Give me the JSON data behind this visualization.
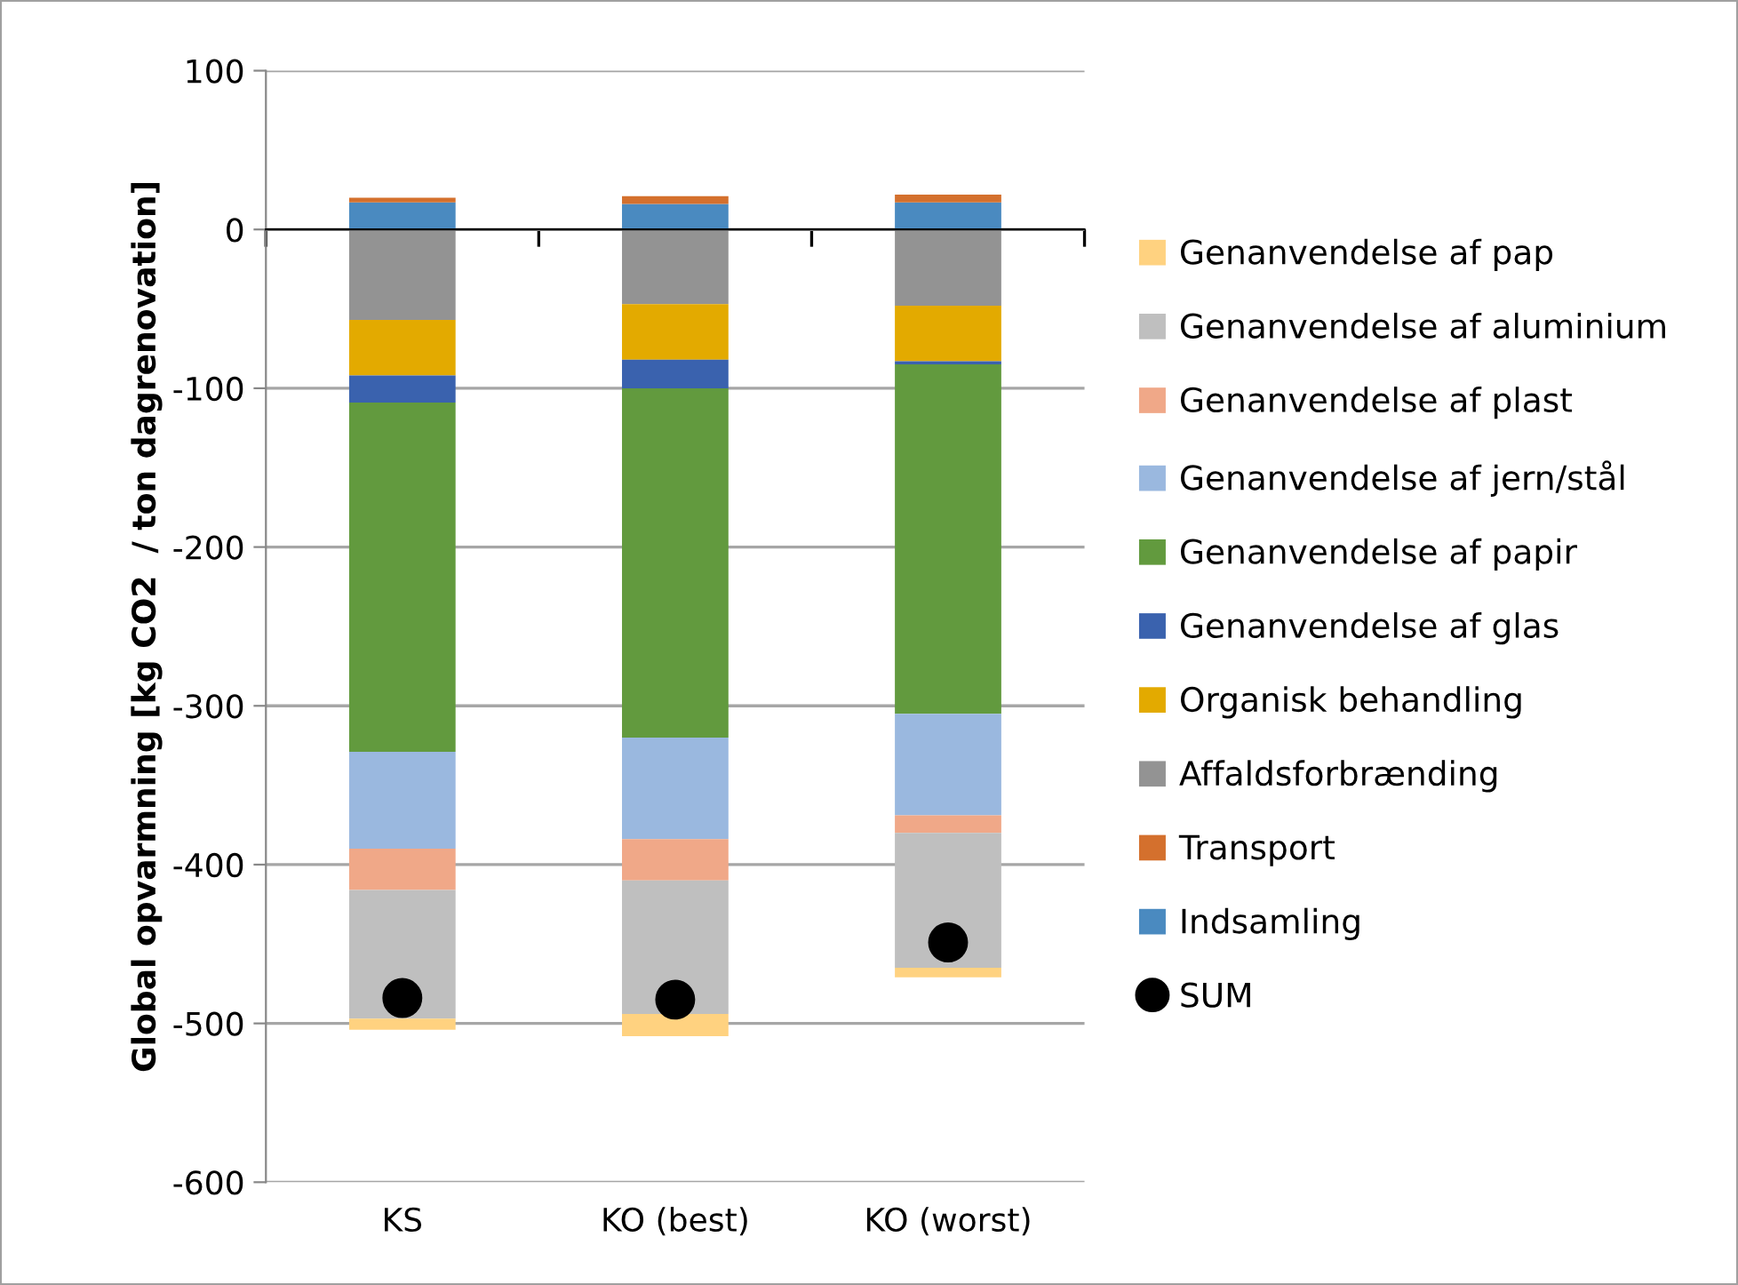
{
  "chart_data": {
    "type": "bar",
    "stacked": true,
    "ylabel": "Global opvarmning [kg CO2  / ton dagrenovation]",
    "categories": [
      "KS",
      "KO (best)",
      "KO (worst)"
    ],
    "series": [
      {
        "name": "Indsamling",
        "color": "#4a8ac0",
        "values": [
          17,
          16,
          17
        ]
      },
      {
        "name": "Transport",
        "color": "#d4702d",
        "values": [
          3,
          5,
          5
        ]
      },
      {
        "name": "Affaldsforbrænding",
        "color": "#939393",
        "values": [
          -57,
          -47,
          -48
        ]
      },
      {
        "name": "Organisk behandling",
        "color": "#e3aa00",
        "values": [
          -35,
          -35,
          -35
        ]
      },
      {
        "name": "Genanvendelse af glas",
        "color": "#3a62ae",
        "values": [
          -17,
          -18,
          -2
        ]
      },
      {
        "name": "Genanvendelse af papir",
        "color": "#629a3e",
        "values": [
          -220,
          -220,
          -220
        ]
      },
      {
        "name": "Genanvendelse af jern/stål",
        "color": "#9ab8df",
        "values": [
          -61,
          -64,
          -64
        ]
      },
      {
        "name": "Genanvendelse af plast",
        "color": "#f0a888",
        "values": [
          -26,
          -26,
          -11
        ]
      },
      {
        "name": "Genanvendelse af aluminium",
        "color": "#bfbfbf",
        "values": [
          -81,
          -84,
          -85
        ]
      },
      {
        "name": "Genanvendelse af pap",
        "color": "#ffd280",
        "values": [
          -7,
          -14,
          -6
        ]
      },
      {
        "name": "SUM",
        "type": "scatter",
        "color": "#000000",
        "marker": "circle",
        "x": [
          "KS",
          "KO (best)",
          "KO (worst)"
        ],
        "values": [
          -484,
          -485,
          -449
        ]
      }
    ],
    "ylim": [
      -600,
      100
    ],
    "yticks": [
      -600,
      -500,
      -400,
      -300,
      -200,
      -100,
      0,
      100
    ],
    "grid": "y",
    "legend": "right"
  }
}
